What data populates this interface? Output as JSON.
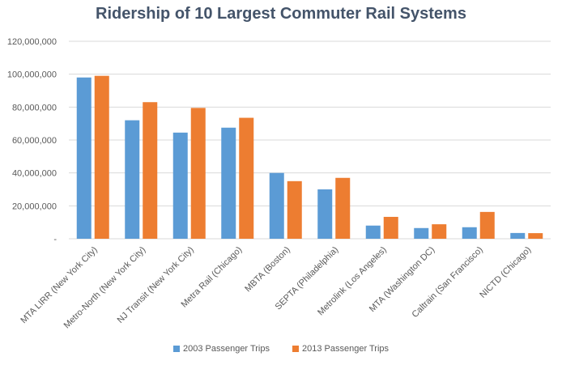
{
  "chart_data": {
    "type": "bar",
    "title": "Ridership of 10 Largest Commuter Rail Systems",
    "xlabel": "",
    "ylabel": "",
    "ylim": [
      0,
      120000000
    ],
    "yticks": [
      0,
      20000000,
      40000000,
      60000000,
      80000000,
      100000000,
      120000000
    ],
    "ytick_labels": [
      "-",
      "20,000,000",
      "40,000,000",
      "60,000,000",
      "80,000,000",
      "100,000,000",
      "120,000,000"
    ],
    "grid": true,
    "legend_position": "bottom",
    "categories": [
      "MTA LIRR (New York City)",
      "Metro-North (New York City)",
      "NJ Transit (New York City)",
      "Metra Rail (Chicago)",
      "MBTA (Boston)",
      "SEPTA (Philadelphia)",
      "Metrolink (Los Angeles)",
      "MTA (Washington DC)",
      "Caltrain (San Francisco)",
      "NICTD (Chicago)"
    ],
    "series": [
      {
        "name": "2003 Passenger Trips",
        "color": "#5b9bd5",
        "values": [
          98000000,
          72000000,
          64500000,
          67500000,
          40000000,
          30000000,
          8000000,
          6500000,
          7000000,
          3500000
        ]
      },
      {
        "name": "2013 Passenger Trips",
        "color": "#ed7d31",
        "values": [
          99000000,
          83000000,
          79500000,
          73500000,
          35000000,
          37000000,
          13300000,
          8800000,
          16300000,
          3400000
        ]
      }
    ]
  }
}
